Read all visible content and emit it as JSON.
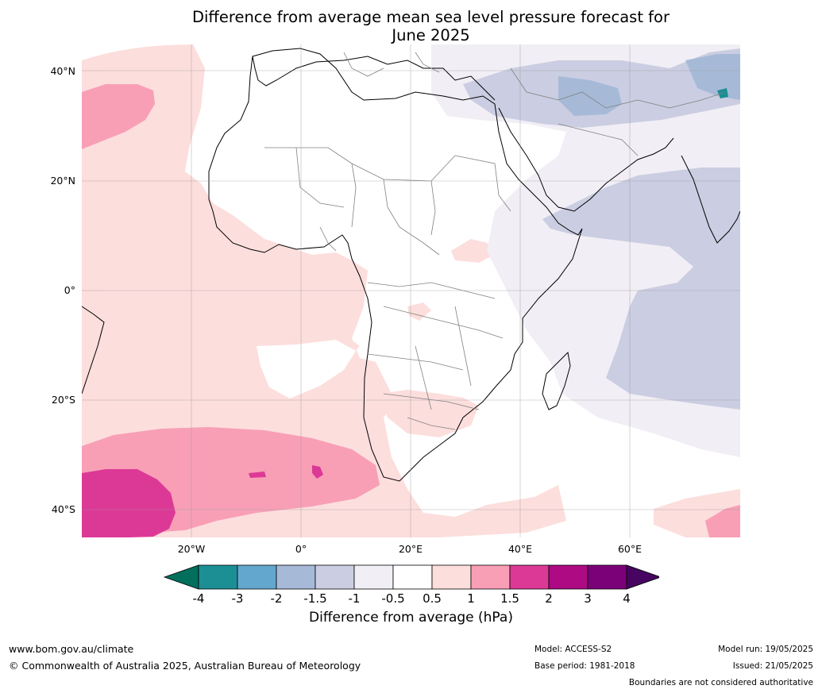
{
  "title_line1": "Difference from average mean sea level pressure forecast for",
  "title_line2": "June 2025",
  "lat_labels": [
    "40°N",
    "20°N",
    "0°",
    "20°S",
    "40°S"
  ],
  "lon_labels": [
    "20°W",
    "0°",
    "20°E",
    "40°E",
    "60°E"
  ],
  "colorbar": {
    "ticks": [
      "-4",
      "-3",
      "-2",
      "-1.5",
      "-1",
      "-0.5",
      "0.5",
      "1",
      "1.5",
      "2",
      "3",
      "4"
    ],
    "colors": [
      "#1b8f93",
      "#63a7cf",
      "#a6bad8",
      "#cbcde2",
      "#f1eef5",
      "#ffffff",
      "#fcdedd",
      "#f89fb6",
      "#dc3997",
      "#ad0a83",
      "#7b0179"
    ],
    "low_extend_color": "#016f5c",
    "high_extend_color": "#460560",
    "label": "Difference from average (hPa)"
  },
  "footer": {
    "url": "www.bom.gov.au/climate",
    "copyright": "© Commonwealth of Australia 2025, Australian Bureau of Meteorology",
    "model": "Model: ACCESS-S2",
    "base_period": "Base period: 1981-2018",
    "model_run": "Model run: 19/05/2025",
    "issued": "Issued: 21/05/2025",
    "disclaimer": "Boundaries are not considered authoritative"
  }
}
